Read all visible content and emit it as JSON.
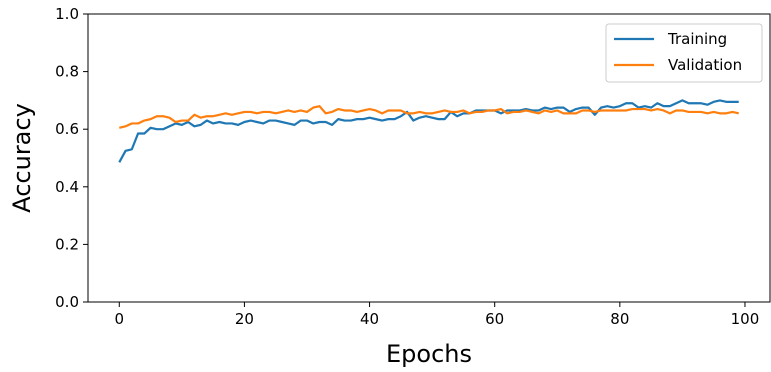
{
  "chart_data": {
    "type": "line",
    "title": "",
    "xlabel": "Epochs",
    "ylabel": "Accuracy",
    "xlim": [
      -5,
      104
    ],
    "ylim": [
      0,
      1.0
    ],
    "xticks": [
      "0",
      "20",
      "40",
      "60",
      "80",
      "100"
    ],
    "yticks": [
      "0.0",
      "0.2",
      "0.4",
      "0.6",
      "0.8",
      "1.0"
    ],
    "grid": false,
    "legend_position": "top-right",
    "series": [
      {
        "name": "Training",
        "color": "#1f77b4",
        "x_start": 0,
        "values": [
          0.485,
          0.525,
          0.53,
          0.585,
          0.585,
          0.605,
          0.6,
          0.6,
          0.61,
          0.62,
          0.615,
          0.625,
          0.61,
          0.615,
          0.63,
          0.62,
          0.625,
          0.62,
          0.62,
          0.615,
          0.625,
          0.63,
          0.625,
          0.62,
          0.63,
          0.63,
          0.625,
          0.62,
          0.615,
          0.63,
          0.63,
          0.62,
          0.625,
          0.625,
          0.615,
          0.635,
          0.63,
          0.63,
          0.635,
          0.635,
          0.64,
          0.635,
          0.63,
          0.635,
          0.635,
          0.645,
          0.66,
          0.63,
          0.64,
          0.645,
          0.64,
          0.635,
          0.635,
          0.66,
          0.645,
          0.655,
          0.655,
          0.665,
          0.665,
          0.665,
          0.665,
          0.655,
          0.665,
          0.665,
          0.665,
          0.67,
          0.665,
          0.665,
          0.675,
          0.67,
          0.675,
          0.675,
          0.66,
          0.67,
          0.675,
          0.675,
          0.65,
          0.675,
          0.68,
          0.675,
          0.68,
          0.69,
          0.69,
          0.675,
          0.68,
          0.675,
          0.69,
          0.68,
          0.68,
          0.69,
          0.7,
          0.69,
          0.69,
          0.69,
          0.685,
          0.695,
          0.7,
          0.695,
          0.695,
          0.695
        ]
      },
      {
        "name": "Validation",
        "color": "#ff7f0e",
        "x_start": 0,
        "values": [
          0.605,
          0.61,
          0.62,
          0.62,
          0.63,
          0.635,
          0.645,
          0.645,
          0.64,
          0.625,
          0.63,
          0.63,
          0.65,
          0.64,
          0.645,
          0.645,
          0.65,
          0.655,
          0.65,
          0.655,
          0.66,
          0.66,
          0.655,
          0.66,
          0.66,
          0.655,
          0.66,
          0.665,
          0.66,
          0.665,
          0.66,
          0.675,
          0.68,
          0.655,
          0.66,
          0.67,
          0.665,
          0.665,
          0.66,
          0.665,
          0.67,
          0.665,
          0.655,
          0.665,
          0.665,
          0.665,
          0.655,
          0.655,
          0.66,
          0.655,
          0.655,
          0.66,
          0.665,
          0.66,
          0.66,
          0.665,
          0.655,
          0.66,
          0.66,
          0.665,
          0.665,
          0.67,
          0.655,
          0.66,
          0.66,
          0.665,
          0.66,
          0.655,
          0.665,
          0.66,
          0.665,
          0.655,
          0.655,
          0.655,
          0.665,
          0.665,
          0.66,
          0.665,
          0.665,
          0.665,
          0.665,
          0.665,
          0.67,
          0.67,
          0.67,
          0.665,
          0.67,
          0.665,
          0.655,
          0.665,
          0.665,
          0.66,
          0.66,
          0.66,
          0.655,
          0.66,
          0.655,
          0.655,
          0.66,
          0.655
        ]
      }
    ]
  }
}
